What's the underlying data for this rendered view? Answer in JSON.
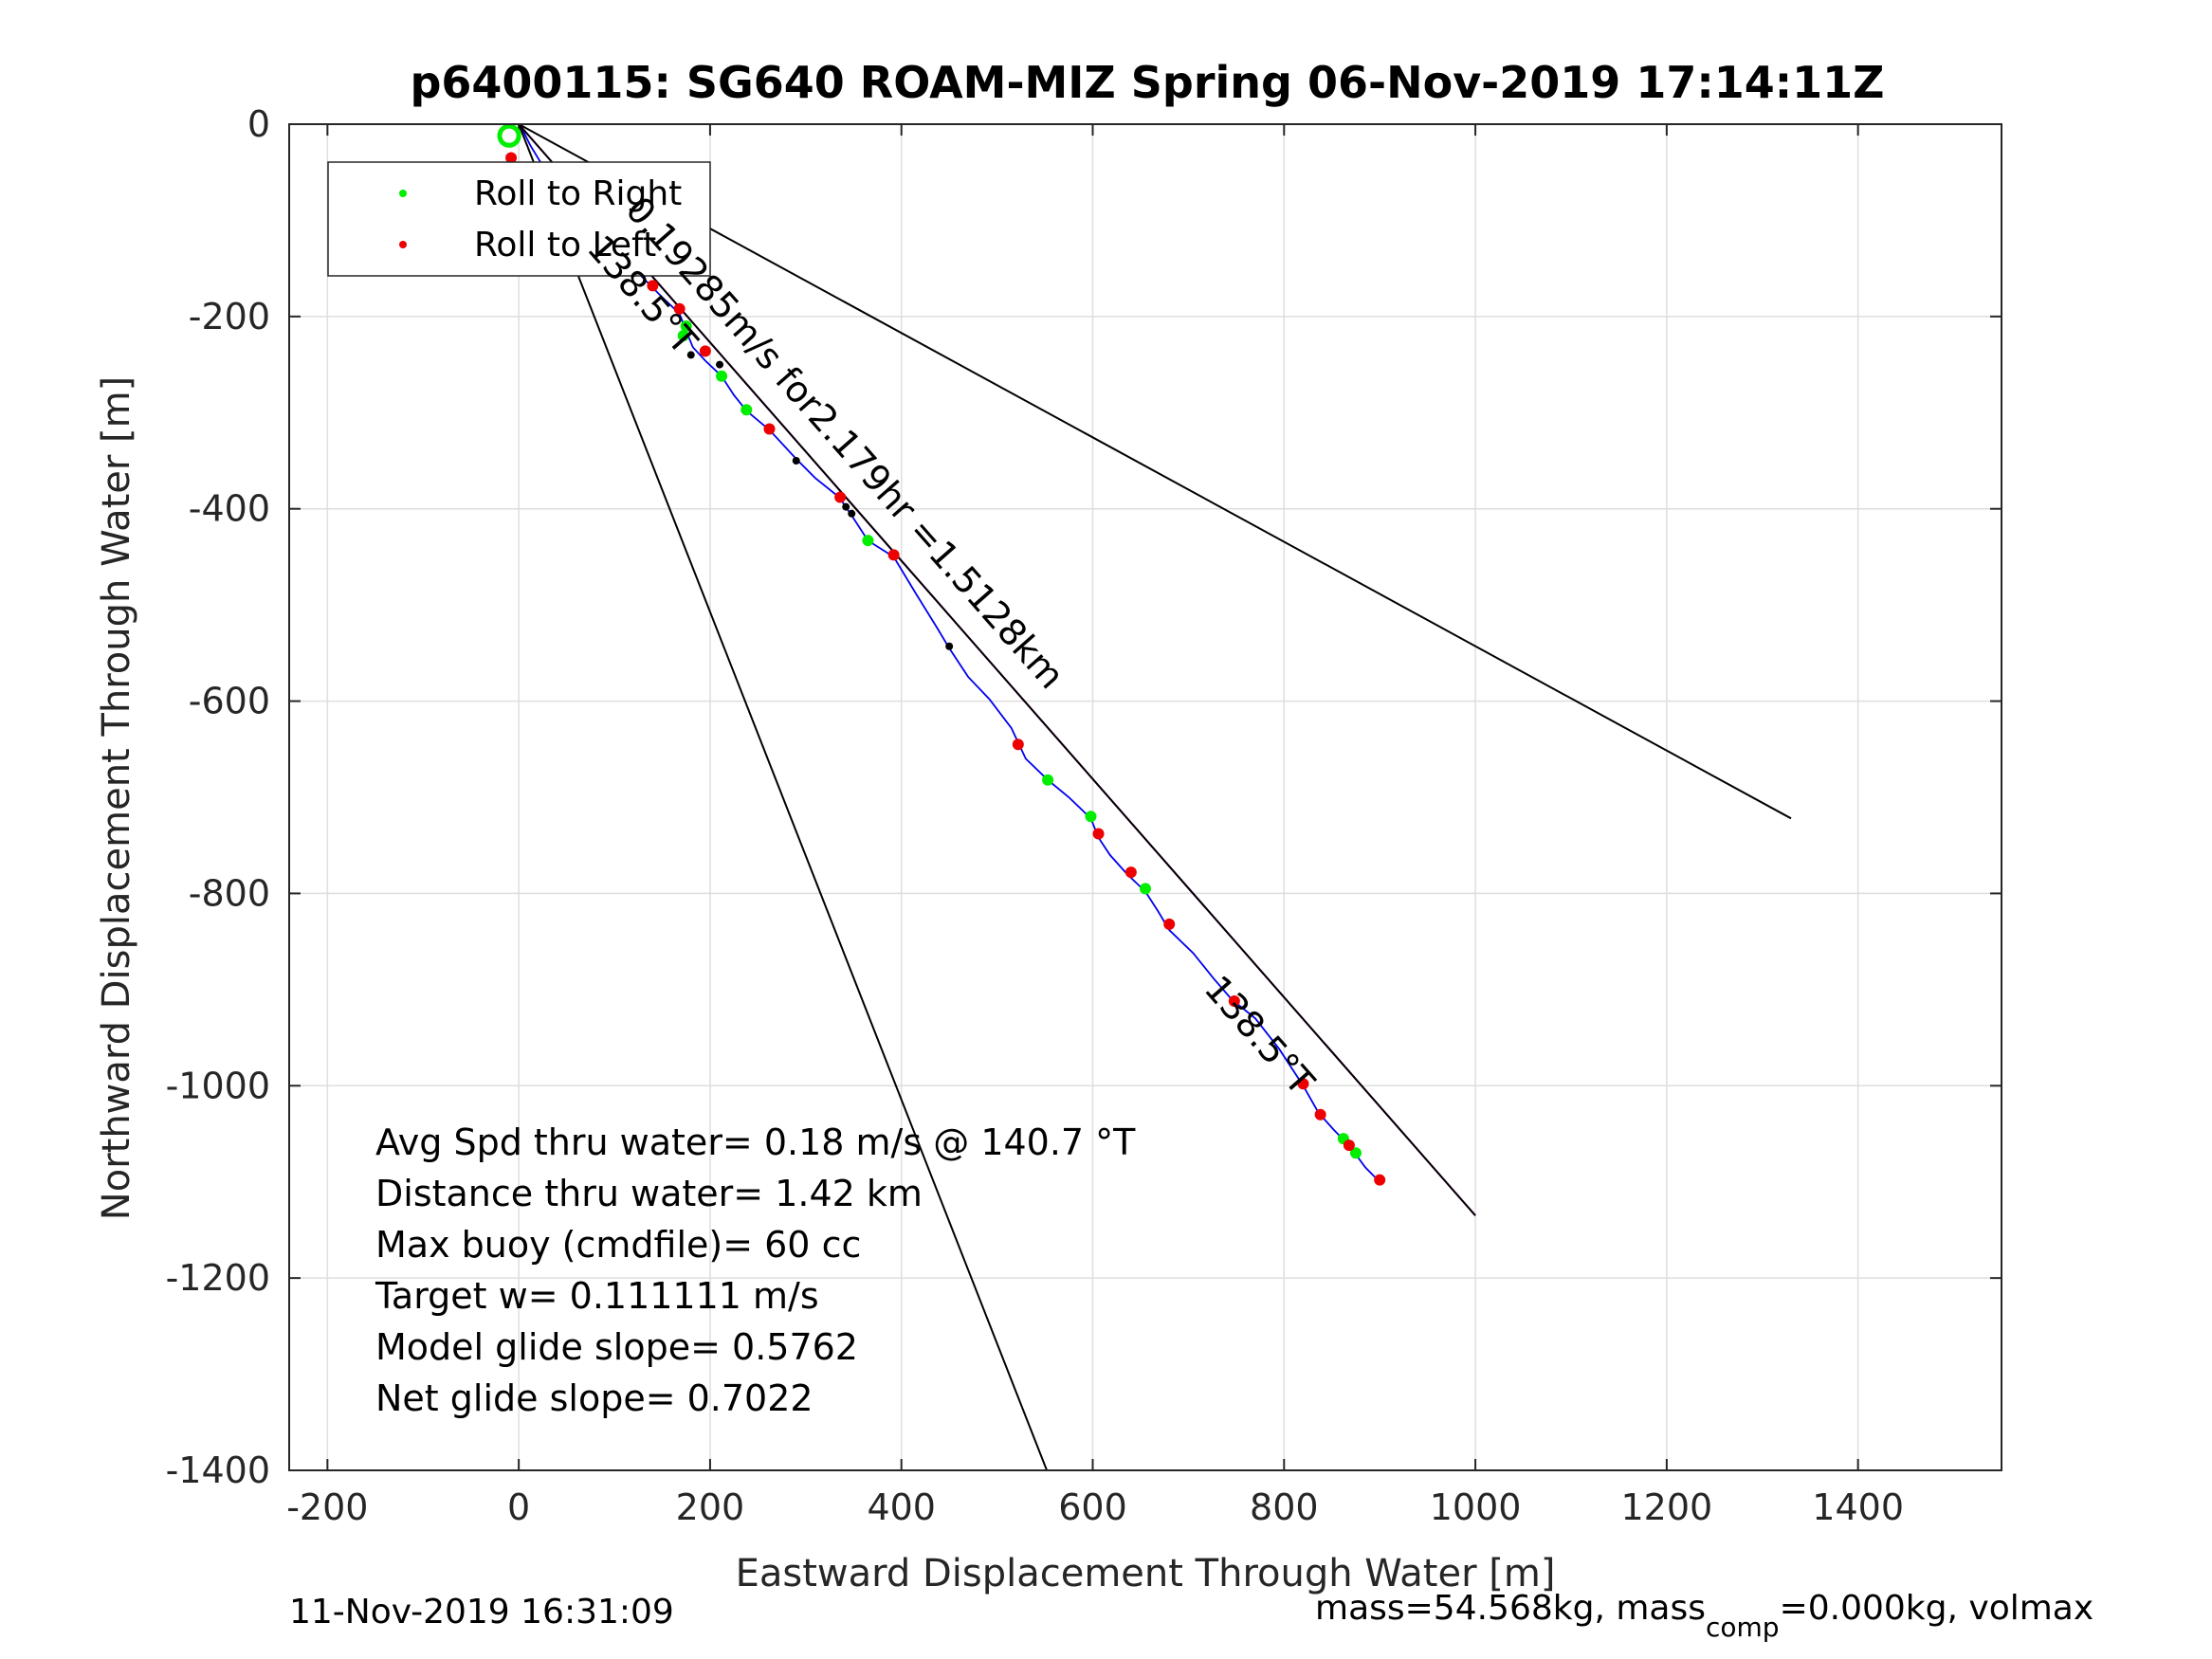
{
  "chart_data": {
    "type": "scatter",
    "title": "p6400115: SG640 ROAM-MIZ Spring 06-Nov-2019 17:14:11Z",
    "xlabel": "Eastward Displacement Through Water [m]",
    "ylabel": "Northward Displacement Through Water [m]",
    "xlim": [
      -240,
      1550
    ],
    "ylim": [
      -1400,
      0
    ],
    "xticks": [
      -200,
      0,
      200,
      400,
      600,
      800,
      1000,
      1200,
      1400
    ],
    "yticks": [
      0,
      -200,
      -400,
      -600,
      -800,
      -1000,
      -1200,
      -1400
    ],
    "grid": true,
    "legend": {
      "placement": "top-left",
      "entries": [
        {
          "label": "Roll to Right",
          "color": "#00ee00"
        },
        {
          "label": "Roll to Left",
          "color": "#ee0000"
        }
      ]
    },
    "series": [
      {
        "kind": "track",
        "color": "#0000ee",
        "points": [
          [
            0,
            0
          ],
          [
            5,
            -8
          ],
          [
            12,
            -22
          ],
          [
            20,
            -35
          ],
          [
            28,
            -48
          ],
          [
            38,
            -60
          ],
          [
            50,
            -72
          ],
          [
            58,
            -82
          ],
          [
            70,
            -96
          ],
          [
            85,
            -112
          ],
          [
            100,
            -128
          ],
          [
            115,
            -145
          ],
          [
            130,
            -160
          ],
          [
            150,
            -180
          ],
          [
            168,
            -197
          ],
          [
            175,
            -215
          ],
          [
            182,
            -232
          ],
          [
            195,
            -246
          ],
          [
            212,
            -262
          ],
          [
            225,
            -282
          ],
          [
            238,
            -298
          ],
          [
            262,
            -318
          ],
          [
            290,
            -348
          ],
          [
            310,
            -368
          ],
          [
            335,
            -388
          ],
          [
            350,
            -410
          ],
          [
            365,
            -433
          ],
          [
            392,
            -450
          ],
          [
            415,
            -488
          ],
          [
            438,
            -525
          ],
          [
            450,
            -545
          ],
          [
            470,
            -575
          ],
          [
            492,
            -598
          ],
          [
            515,
            -628
          ],
          [
            530,
            -660
          ],
          [
            553,
            -682
          ],
          [
            575,
            -700
          ],
          [
            598,
            -722
          ],
          [
            606,
            -742
          ],
          [
            618,
            -760
          ],
          [
            636,
            -780
          ],
          [
            655,
            -798
          ],
          [
            668,
            -818
          ],
          [
            680,
            -838
          ],
          [
            705,
            -862
          ],
          [
            726,
            -888
          ],
          [
            745,
            -910
          ],
          [
            770,
            -930
          ],
          [
            795,
            -962
          ],
          [
            820,
            -1000
          ],
          [
            836,
            -1028
          ],
          [
            852,
            -1046
          ],
          [
            868,
            -1062
          ],
          [
            885,
            -1085
          ],
          [
            900,
            -1100
          ]
        ]
      },
      {
        "kind": "line",
        "color": "#cc00cc",
        "points": [
          [
            0,
            0
          ],
          [
            1000,
            -1135
          ]
        ]
      },
      {
        "kind": "line",
        "color": "#000000",
        "points": [
          [
            0,
            0
          ],
          [
            1000,
            -1135
          ]
        ]
      },
      {
        "kind": "line",
        "color": "#000000",
        "points": [
          [
            0,
            0
          ],
          [
            1330,
            -722
          ]
        ]
      },
      {
        "kind": "line",
        "color": "#000000",
        "points": [
          [
            0,
            0
          ],
          [
            552,
            -1400
          ]
        ]
      },
      {
        "kind": "arc",
        "color": "#00ee00",
        "center": [
          -10,
          -12
        ],
        "radius": 10
      },
      {
        "name": "Roll to Right",
        "kind": "dots",
        "color": "#00ee00",
        "points": [
          [
            175,
            -210
          ],
          [
            172,
            -220
          ],
          [
            212,
            -262
          ],
          [
            238,
            -297
          ],
          [
            365,
            -433
          ],
          [
            553,
            -682
          ],
          [
            598,
            -720
          ],
          [
            655,
            -795
          ],
          [
            862,
            -1055
          ],
          [
            875,
            -1070
          ]
        ]
      },
      {
        "name": "Roll to Left",
        "kind": "dots",
        "color": "#ee0000",
        "points": [
          [
            -8,
            -35
          ],
          [
            18,
            -55
          ],
          [
            55,
            -80
          ],
          [
            120,
            -142
          ],
          [
            140,
            -168
          ],
          [
            168,
            -192
          ],
          [
            195,
            -236
          ],
          [
            262,
            -317
          ],
          [
            336,
            -388
          ],
          [
            392,
            -448
          ],
          [
            522,
            -645
          ],
          [
            606,
            -738
          ],
          [
            640,
            -778
          ],
          [
            680,
            -832
          ],
          [
            748,
            -912
          ],
          [
            820,
            -998
          ],
          [
            838,
            -1030
          ],
          [
            868,
            -1062
          ],
          [
            900,
            -1098
          ]
        ]
      },
      {
        "kind": "dots",
        "color": "#000000",
        "points": [
          [
            180,
            -240
          ],
          [
            210,
            -250
          ],
          [
            290,
            -350
          ],
          [
            342,
            -398
          ],
          [
            348,
            -405
          ],
          [
            450,
            -543
          ]
        ]
      }
    ],
    "annotations": [
      {
        "text": "0.19285m/s for2.179hr =1.5128km",
        "x": 110,
        "y": -90,
        "rotate": 48.6
      },
      {
        "text": "138.5°T",
        "x": 70,
        "y": -130,
        "rotate": 48.6
      },
      {
        "text": "138.5°T",
        "x": 715,
        "y": -900,
        "rotate": 48.6
      }
    ],
    "stats": [
      "Avg Spd thru water=  0.18 m/s @ 140.7 °T",
      "Distance thru water=  1.42 km",
      "Max buoy (cmdfile)= 60 cc",
      "Target w= 0.111111 m/s",
      "Model glide slope= 0.5762",
      "Net glide slope= 0.7022"
    ],
    "footer_left": "11-Nov-2019 16:31:09",
    "footer_right": {
      "part1": "mass=54.568kg, mass",
      "sub": "comp",
      "part2": "=0.000kg, volmax"
    }
  }
}
